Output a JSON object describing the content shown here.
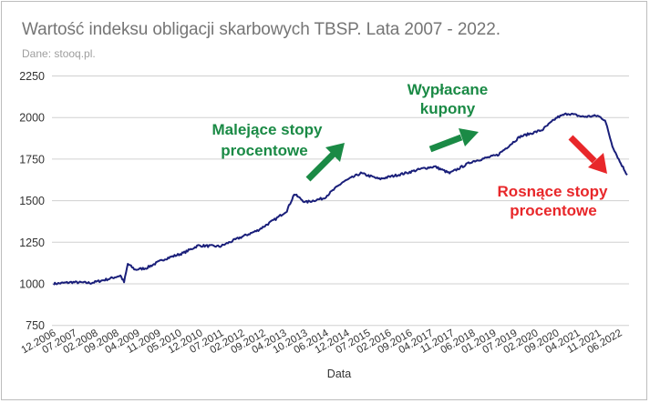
{
  "header": {
    "title": "Wartość indeksu obligacji skarbowych TBSP. Lata 2007 - 2022.",
    "subtitle": "Dane: stooq.pl."
  },
  "colors": {
    "line": "#1a1f7a",
    "grid": "#d0d0d0",
    "green_annotation": "#1a8a45",
    "red_annotation": "#e8272a"
  },
  "annotations": {
    "falling_rates": {
      "line1": "Malejące stopy",
      "line2": "procentowe"
    },
    "coupons": {
      "line1": "Wypłacane",
      "line2": "kupony"
    },
    "rising_rates": {
      "line1": "Rosnące stopy",
      "line2": "procentowe"
    }
  },
  "chart_data": {
    "type": "line",
    "title": "Wartość indeksu obligacji skarbowych TBSP. Lata 2007 - 2022.",
    "subtitle": "Dane: stooq.pl.",
    "xlabel": "Data",
    "ylabel": "",
    "ylim": [
      750,
      2250
    ],
    "yticks": [
      750,
      1000,
      1250,
      1500,
      1750,
      2000,
      2250
    ],
    "xticks": [
      "12.2006",
      "07.2007",
      "02.2008",
      "09.2008",
      "04.2009",
      "11.2009",
      "05.2010",
      "12.2010",
      "07.2011",
      "02.2012",
      "09.2012",
      "04.2013",
      "10.2013",
      "06.2014",
      "12.2014",
      "07.2015",
      "02.2016",
      "09.2016",
      "04.2017",
      "11.2017",
      "06.2018",
      "01.2019",
      "07.2019",
      "02.2020",
      "09.2020",
      "04.2021",
      "11.2021",
      "06.2022"
    ],
    "grid": true,
    "legend": "none",
    "series": [
      {
        "name": "TBSP",
        "x": [
          2007.0,
          2007.5,
          2008.0,
          2008.5,
          2008.8,
          2008.9,
          2009.0,
          2009.2,
          2009.5,
          2010.0,
          2010.5,
          2010.9,
          2011.5,
          2012.0,
          2012.5,
          2013.0,
          2013.3,
          2013.5,
          2013.8,
          2014.3,
          2014.8,
          2015.3,
          2015.8,
          2016.5,
          2017.0,
          2017.3,
          2017.7,
          2018.3,
          2019.0,
          2019.6,
          2020.2,
          2020.6,
          2020.9,
          2021.3,
          2021.7,
          2021.9,
          2022.1,
          2022.3,
          2022.5
        ],
        "values": [
          1000,
          1010,
          1005,
          1030,
          1050,
          1010,
          1120,
          1085,
          1095,
          1150,
          1185,
          1230,
          1225,
          1275,
          1320,
          1390,
          1440,
          1540,
          1490,
          1515,
          1610,
          1665,
          1630,
          1665,
          1695,
          1705,
          1665,
          1735,
          1775,
          1885,
          1925,
          2000,
          2025,
          2005,
          2010,
          1985,
          1830,
          1735,
          1655
        ]
      }
    ],
    "annotations": [
      {
        "text": "Malejące stopy procentowe",
        "color": "green",
        "arrow": "up-right"
      },
      {
        "text": "Wypłacane kupony",
        "color": "green",
        "arrow": "up-right"
      },
      {
        "text": "Rosnące stopy procentowe",
        "color": "red",
        "arrow": "down-right"
      }
    ]
  }
}
